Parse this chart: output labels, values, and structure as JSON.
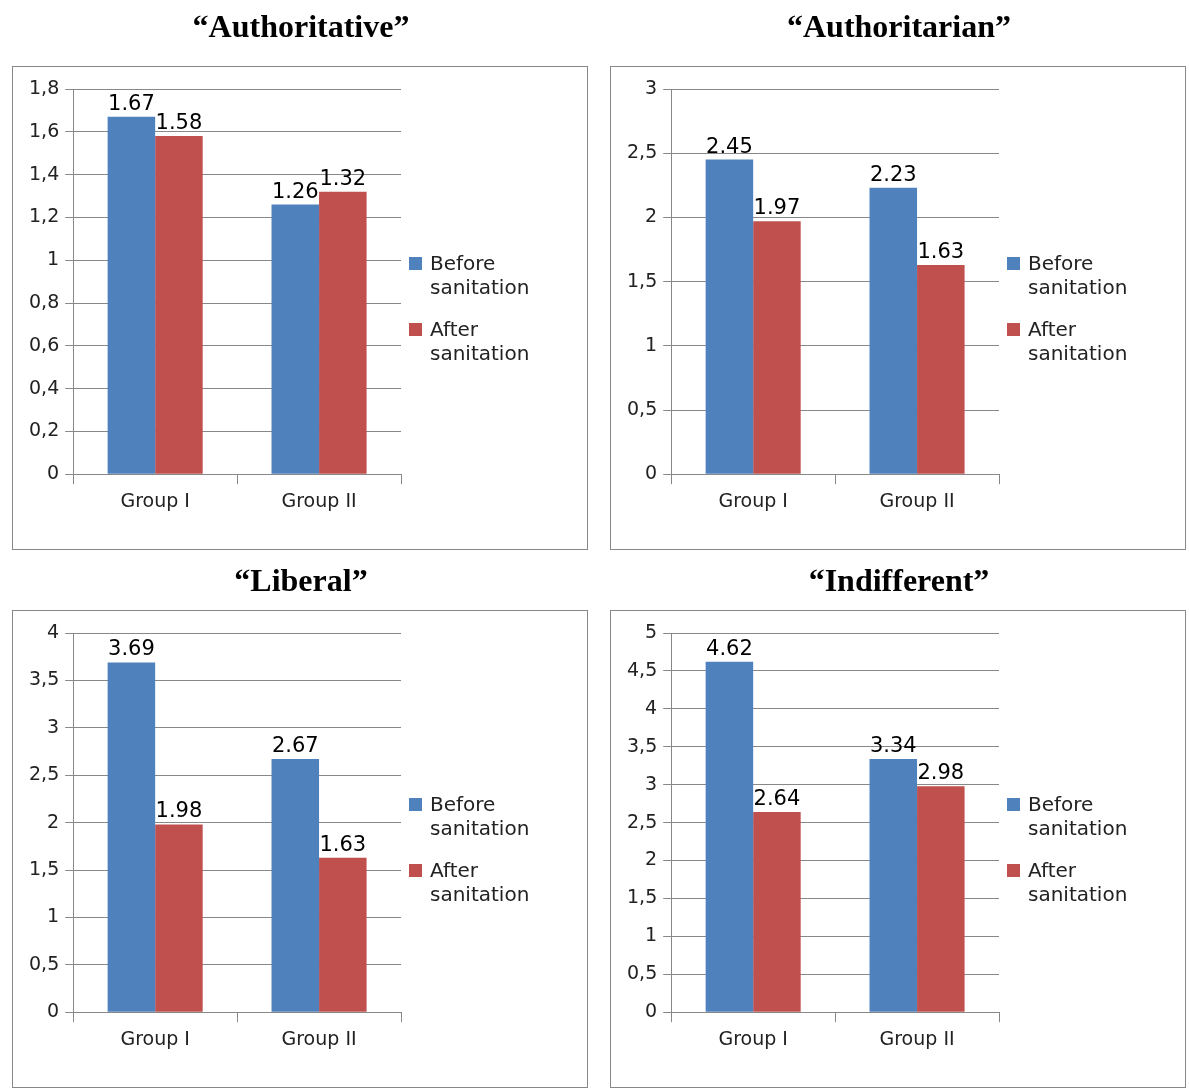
{
  "chart_data": [
    {
      "type": "bar",
      "title": "“Authoritative”",
      "categories": [
        "Group I",
        "Group II"
      ],
      "series": [
        {
          "name": "Before sanitation",
          "color": "#4f81bd",
          "values": [
            1.67,
            1.26
          ]
        },
        {
          "name": "After sanitation",
          "color": "#c0504d",
          "values": [
            1.58,
            1.32
          ]
        }
      ],
      "ylim": [
        0,
        1.8
      ],
      "yticks": [
        0,
        {
          "value": 0.2,
          "label": "0,2"
        },
        {
          "value": 0.4,
          "label": "0,4"
        },
        {
          "value": 0.6,
          "label": "0,6"
        },
        {
          "value": 0.8,
          "label": "0,8"
        },
        1,
        {
          "value": 1.2,
          "label": "1,2"
        },
        {
          "value": 1.4,
          "label": "1,4"
        },
        {
          "value": 1.6,
          "label": "1,6"
        },
        {
          "value": 1.8,
          "label": "1,8"
        }
      ],
      "grid": "y",
      "legend": "right",
      "data_labels": true
    },
    {
      "type": "bar",
      "title": "“Authoritarian”",
      "categories": [
        "Group I",
        "Group II"
      ],
      "series": [
        {
          "name": "Before sanitation",
          "color": "#4f81bd",
          "values": [
            2.45,
            2.23
          ]
        },
        {
          "name": "After sanitation",
          "color": "#c0504d",
          "values": [
            1.97,
            1.63
          ]
        }
      ],
      "ylim": [
        0,
        3
      ],
      "yticks": [
        0,
        {
          "value": 0.5,
          "label": "0,5"
        },
        1,
        {
          "value": 1.5,
          "label": "1,5"
        },
        2,
        {
          "value": 2.5,
          "label": "2,5"
        },
        3
      ],
      "grid": "y",
      "legend": "right",
      "data_labels": true
    },
    {
      "type": "bar",
      "title": "“Liberal”",
      "categories": [
        "Group I",
        "Group II"
      ],
      "series": [
        {
          "name": "Before sanitation",
          "color": "#4f81bd",
          "values": [
            3.69,
            2.67
          ]
        },
        {
          "name": "After sanitation",
          "color": "#c0504d",
          "values": [
            1.98,
            1.63
          ]
        }
      ],
      "ylim": [
        0,
        4
      ],
      "yticks": [
        0,
        {
          "value": 0.5,
          "label": "0,5"
        },
        1,
        {
          "value": 1.5,
          "label": "1,5"
        },
        2,
        {
          "value": 2.5,
          "label": "2,5"
        },
        3,
        {
          "value": 3.5,
          "label": "3,5"
        },
        4
      ],
      "grid": "y",
      "legend": "right",
      "data_labels": true
    },
    {
      "type": "bar",
      "title": "“Indifferent”",
      "categories": [
        "Group I",
        "Group II"
      ],
      "series": [
        {
          "name": "Before sanitation",
          "color": "#4f81bd",
          "values": [
            4.62,
            3.34
          ]
        },
        {
          "name": "After sanitation",
          "color": "#c0504d",
          "values": [
            2.64,
            2.98
          ]
        }
      ],
      "ylim": [
        0,
        5
      ],
      "yticks": [
        0,
        {
          "value": 0.5,
          "label": "0,5"
        },
        1,
        {
          "value": 1.5,
          "label": "1,5"
        },
        2,
        {
          "value": 2.5,
          "label": "2,5"
        },
        3,
        {
          "value": 3.5,
          "label": "3,5"
        },
        4,
        {
          "value": 4.5,
          "label": "4,5"
        },
        5
      ],
      "grid": "y",
      "legend": "right",
      "data_labels": true
    }
  ]
}
